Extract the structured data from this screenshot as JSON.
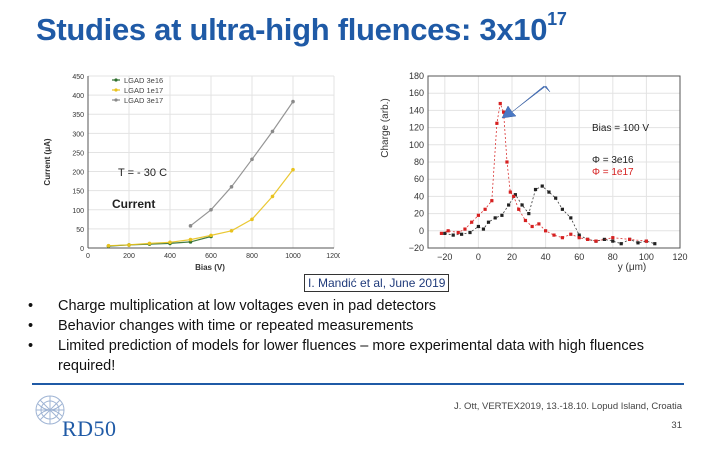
{
  "slide": {
    "title": "Studies at ultra-high fluences: 3x10",
    "title_exponent": "17",
    "citation": "I. Mandić et al, June 2019",
    "bullets": [
      "Charge multiplication at low voltages even in pad detectors",
      "Behavior changes with time or repeated measurements",
      "Limited prediction of models for lower fluences – more experimental data with high fluences required!"
    ],
    "footer": "J. Ott, VERTEX2019, 13.-18.10. Lopud Island, Croatia",
    "page_number": "31",
    "logo_text": "RD50",
    "accent_color": "#1f5aa6"
  },
  "chart_data": [
    {
      "type": "line",
      "ylabel": "Current (μA)",
      "xlabel": "Bias (V)",
      "xlim": [
        0,
        1200
      ],
      "ylim": [
        0,
        450
      ],
      "x_ticks": [
        0,
        200,
        400,
        600,
        800,
        1000,
        1200
      ],
      "y_ticks": [
        0,
        50,
        100,
        150,
        200,
        250,
        300,
        350,
        400,
        450
      ],
      "annotations": [
        "T = - 30 C",
        "Current"
      ],
      "legend_position": "top-left",
      "series": [
        {
          "name": "LGAD 3e16",
          "color": "#2f6f2f",
          "points": [
            [
              100,
              5
            ],
            [
              200,
              8
            ],
            [
              300,
              10
            ],
            [
              400,
              12
            ],
            [
              500,
              16
            ],
            [
              600,
              30
            ]
          ]
        },
        {
          "name": "LGAD 1e17",
          "color": "#e8c21e",
          "points": [
            [
              100,
              6
            ],
            [
              200,
              8
            ],
            [
              300,
              12
            ],
            [
              400,
              15
            ],
            [
              500,
              22
            ],
            [
              600,
              33
            ],
            [
              700,
              45
            ],
            [
              800,
              75
            ],
            [
              900,
              135
            ],
            [
              1000,
              205
            ]
          ]
        },
        {
          "name": "LGAD 3e17",
          "color": "#8a8a8a",
          "points": [
            [
              500,
              58
            ],
            [
              600,
              100
            ],
            [
              700,
              160
            ],
            [
              800,
              232
            ],
            [
              900,
              305
            ],
            [
              1000,
              383
            ]
          ]
        }
      ]
    },
    {
      "type": "scatter",
      "ylabel": "Charge (arb.)",
      "xlabel": "y (μm)",
      "xlim": [
        -30,
        120
      ],
      "ylim": [
        -20,
        180
      ],
      "x_ticks": [
        -20,
        0,
        20,
        40,
        60,
        80,
        100,
        120
      ],
      "y_ticks": [
        -20,
        0,
        20,
        40,
        60,
        80,
        100,
        120,
        140,
        160,
        180
      ],
      "annotations": [
        "Bias = 100 V"
      ],
      "legend_position": "right",
      "series": [
        {
          "name": "Φ = 3e16",
          "color": "#222222",
          "points": [
            [
              -20,
              -3
            ],
            [
              -15,
              -5
            ],
            [
              -10,
              -4
            ],
            [
              -5,
              -2
            ],
            [
              0,
              5
            ],
            [
              3,
              2
            ],
            [
              6,
              10
            ],
            [
              10,
              15
            ],
            [
              14,
              18
            ],
            [
              18,
              30
            ],
            [
              22,
              42
            ],
            [
              26,
              30
            ],
            [
              30,
              20
            ],
            [
              34,
              48
            ],
            [
              38,
              52
            ],
            [
              42,
              45
            ],
            [
              46,
              38
            ],
            [
              50,
              25
            ],
            [
              55,
              15
            ],
            [
              60,
              -5
            ],
            [
              65,
              -10
            ],
            [
              70,
              -12
            ],
            [
              75,
              -10
            ],
            [
              80,
              -12
            ],
            [
              85,
              -15
            ],
            [
              90,
              -10
            ],
            [
              95,
              -14
            ],
            [
              100,
              -12
            ],
            [
              105,
              -15
            ]
          ]
        },
        {
          "name": "Φ = 1e17",
          "color": "#d62020",
          "points": [
            [
              -22,
              -3
            ],
            [
              -18,
              0
            ],
            [
              -12,
              -2
            ],
            [
              -8,
              2
            ],
            [
              -4,
              10
            ],
            [
              0,
              18
            ],
            [
              4,
              25
            ],
            [
              8,
              35
            ],
            [
              11,
              125
            ],
            [
              13,
              148
            ],
            [
              15,
              138
            ],
            [
              17,
              80
            ],
            [
              19,
              45
            ],
            [
              21,
              40
            ],
            [
              24,
              25
            ],
            [
              28,
              12
            ],
            [
              32,
              5
            ],
            [
              36,
              8
            ],
            [
              40,
              0
            ],
            [
              45,
              -5
            ],
            [
              50,
              -8
            ],
            [
              55,
              -4
            ],
            [
              60,
              -8
            ],
            [
              65,
              -10
            ],
            [
              70,
              -12
            ],
            [
              80,
              -8
            ],
            [
              90,
              -10
            ],
            [
              100,
              -12
            ]
          ]
        }
      ]
    }
  ]
}
